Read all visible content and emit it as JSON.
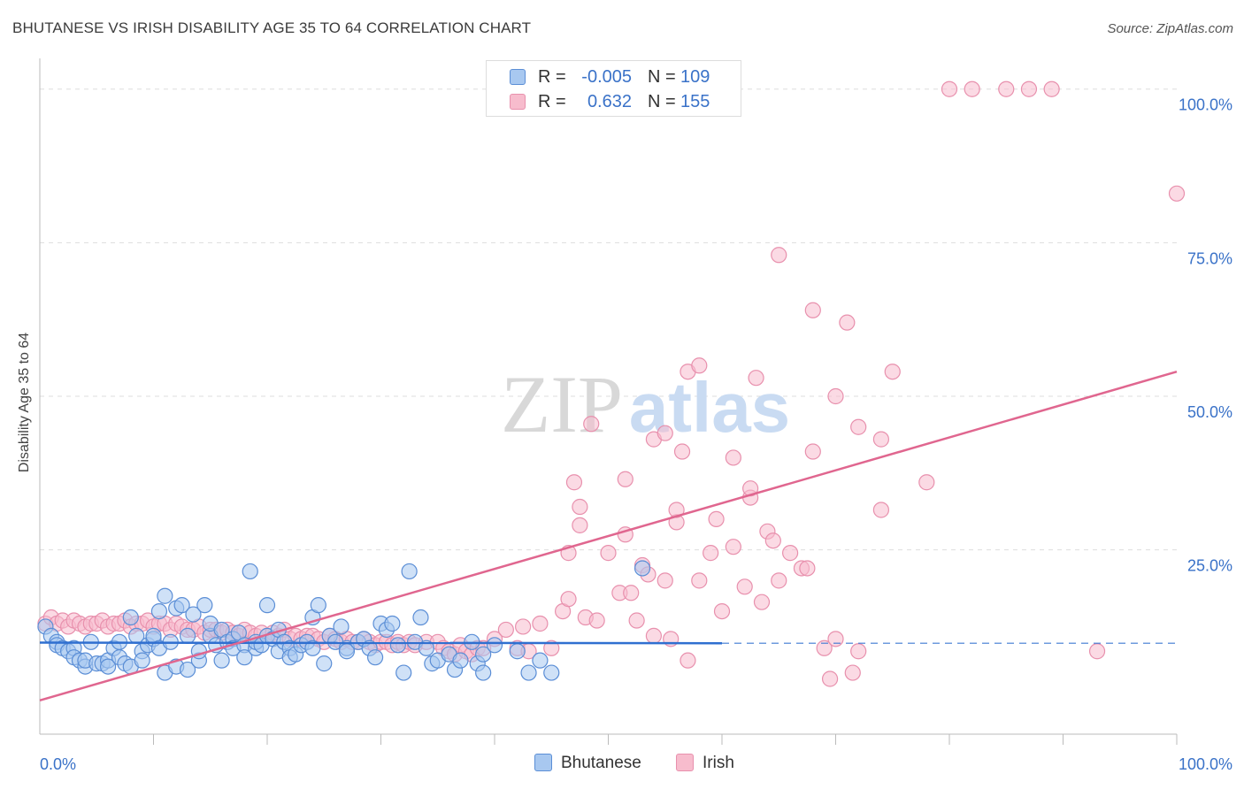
{
  "title": "BHUTANESE VS IRISH DISABILITY AGE 35 TO 64 CORRELATION CHART",
  "source": "Source: ZipAtlas.com",
  "watermark": {
    "zip": "ZIP",
    "atlas": "atlas"
  },
  "legend": {
    "rows": [
      {
        "r_label": "R =",
        "r_value": "-0.005",
        "n_label": "N =",
        "n_value": "109"
      },
      {
        "r_label": "R =",
        "r_value": "0.632",
        "n_label": "N =",
        "n_value": "155"
      }
    ]
  },
  "bottom_legend": [
    "Bhutanese",
    "Irish"
  ],
  "colors": {
    "bhutanese_fill": "#a8c8f0",
    "bhutanese_stroke": "#5b8ed6",
    "bhutanese_line": "#2f6fd0",
    "irish_fill": "#f7bccd",
    "irish_stroke": "#e890ad",
    "irish_line": "#e0668f",
    "tick_label": "#3a72c8",
    "grid": "#dddddd"
  },
  "chart_data": {
    "type": "scatter",
    "title": "BHUTANESE VS IRISH DISABILITY AGE 35 TO 64 CORRELATION CHART",
    "xlabel": "",
    "ylabel": "Disability Age 35 to 64",
    "xlim": [
      0,
      100
    ],
    "ylim": [
      -5,
      105
    ],
    "y_ticks": [
      25,
      50,
      75,
      100
    ],
    "y_tick_labels": [
      "25.0%",
      "50.0%",
      "75.0%",
      "100.0%"
    ],
    "x_tick_labels": [
      "0.0%",
      "100.0%"
    ],
    "series": [
      {
        "name": "Bhutanese",
        "r": -0.005,
        "n": 109,
        "trend": {
          "x": [
            0,
            60
          ],
          "y": [
            9.9,
            9.8
          ],
          "dashed_x": [
            60,
            100
          ],
          "dashed_y": [
            9.8,
            9.8
          ]
        },
        "points": [
          [
            0.5,
            12.5
          ],
          [
            1,
            11
          ],
          [
            1.5,
            10
          ],
          [
            1.5,
            9.5
          ],
          [
            2,
            9
          ],
          [
            2.5,
            8.5
          ],
          [
            3,
            9
          ],
          [
            3,
            7.5
          ],
          [
            3.5,
            7
          ],
          [
            4,
            6
          ],
          [
            4,
            7
          ],
          [
            4.5,
            10
          ],
          [
            5,
            6.5
          ],
          [
            5.5,
            6.5
          ],
          [
            6,
            7
          ],
          [
            6,
            6
          ],
          [
            6.5,
            9
          ],
          [
            7,
            10
          ],
          [
            7,
            7.5
          ],
          [
            7.5,
            6.5
          ],
          [
            8,
            14
          ],
          [
            8,
            6
          ],
          [
            8.5,
            11
          ],
          [
            9,
            8.5
          ],
          [
            9,
            7
          ],
          [
            9.5,
            9.5
          ],
          [
            10,
            10.5
          ],
          [
            10,
            11
          ],
          [
            10.5,
            9
          ],
          [
            10.5,
            15
          ],
          [
            11,
            17.5
          ],
          [
            11,
            5
          ],
          [
            11.5,
            10
          ],
          [
            12,
            15.5
          ],
          [
            12,
            6
          ],
          [
            12.5,
            16
          ],
          [
            13,
            11
          ],
          [
            13,
            5.5
          ],
          [
            13.5,
            14.5
          ],
          [
            14,
            7
          ],
          [
            14,
            8.5
          ],
          [
            14.5,
            16
          ],
          [
            15,
            11
          ],
          [
            15,
            13
          ],
          [
            15.5,
            9.5
          ],
          [
            16,
            12
          ],
          [
            16,
            7
          ],
          [
            16.5,
            10
          ],
          [
            17,
            10.5
          ],
          [
            17,
            9
          ],
          [
            17.5,
            11.5
          ],
          [
            18,
            9.5
          ],
          [
            18,
            7.5
          ],
          [
            18.5,
            21.5
          ],
          [
            19,
            9
          ],
          [
            19,
            10
          ],
          [
            19.5,
            9.5
          ],
          [
            20,
            11
          ],
          [
            20,
            16
          ],
          [
            20.5,
            10.5
          ],
          [
            21,
            12
          ],
          [
            21,
            8.5
          ],
          [
            21.5,
            10
          ],
          [
            22,
            9
          ],
          [
            22,
            7.5
          ],
          [
            22.5,
            8
          ],
          [
            23,
            9.5
          ],
          [
            23.5,
            10
          ],
          [
            24,
            9
          ],
          [
            24,
            14
          ],
          [
            24.5,
            16
          ],
          [
            25,
            6.5
          ],
          [
            25.5,
            11
          ],
          [
            26,
            10
          ],
          [
            26.5,
            12.5
          ],
          [
            27,
            9
          ],
          [
            27,
            8.5
          ],
          [
            28,
            10
          ],
          [
            28.5,
            10.5
          ],
          [
            29,
            9
          ],
          [
            29.5,
            7.5
          ],
          [
            30,
            13
          ],
          [
            30.5,
            12
          ],
          [
            31,
            13
          ],
          [
            31.5,
            9.5
          ],
          [
            32,
            5
          ],
          [
            32.5,
            21.5
          ],
          [
            33,
            10
          ],
          [
            33.5,
            14
          ],
          [
            34,
            9
          ],
          [
            34.5,
            6.5
          ],
          [
            35,
            7
          ],
          [
            36,
            8
          ],
          [
            36.5,
            5.5
          ],
          [
            37,
            7
          ],
          [
            38,
            10
          ],
          [
            38.5,
            6.5
          ],
          [
            39,
            8
          ],
          [
            39,
            5
          ],
          [
            40,
            9.5
          ],
          [
            42,
            8.5
          ],
          [
            43,
            5
          ],
          [
            44,
            7
          ],
          [
            45,
            5
          ],
          [
            53,
            22
          ]
        ]
      },
      {
        "name": "Irish",
        "r": 0.632,
        "n": 155,
        "trend": {
          "x": [
            0,
            100
          ],
          "y": [
            0.5,
            54
          ]
        },
        "points": [
          [
            0.5,
            13
          ],
          [
            1,
            14
          ],
          [
            1.5,
            13
          ],
          [
            2,
            13.5
          ],
          [
            2.5,
            12.5
          ],
          [
            3,
            13.5
          ],
          [
            3.5,
            13
          ],
          [
            4,
            12.5
          ],
          [
            4.5,
            13
          ],
          [
            5,
            13
          ],
          [
            5.5,
            13.5
          ],
          [
            6,
            12.5
          ],
          [
            6.5,
            13
          ],
          [
            7,
            13
          ],
          [
            7.5,
            13.5
          ],
          [
            8,
            12.5
          ],
          [
            8.5,
            13
          ],
          [
            9,
            13
          ],
          [
            9.5,
            13.5
          ],
          [
            10,
            12.5
          ],
          [
            10.5,
            13
          ],
          [
            11,
            13
          ],
          [
            11.5,
            12
          ],
          [
            12,
            13
          ],
          [
            12.5,
            12.5
          ],
          [
            13,
            12
          ],
          [
            13.5,
            12
          ],
          [
            14,
            12.5
          ],
          [
            14.5,
            11.5
          ],
          [
            15,
            12
          ],
          [
            15.5,
            12
          ],
          [
            16,
            11.5
          ],
          [
            16.5,
            12
          ],
          [
            17,
            11.5
          ],
          [
            17.5,
            11
          ],
          [
            18,
            12
          ],
          [
            18.5,
            11.5
          ],
          [
            19,
            11
          ],
          [
            19.5,
            11.5
          ],
          [
            20,
            11
          ],
          [
            20.5,
            11.5
          ],
          [
            21,
            11
          ],
          [
            21.5,
            12
          ],
          [
            22,
            10.5
          ],
          [
            22.5,
            11
          ],
          [
            23,
            10.5
          ],
          [
            23.5,
            11
          ],
          [
            24,
            11
          ],
          [
            24.5,
            10.5
          ],
          [
            25,
            10
          ],
          [
            25.5,
            11
          ],
          [
            26,
            10.5
          ],
          [
            26.5,
            10
          ],
          [
            27,
            10.5
          ],
          [
            27.5,
            10
          ],
          [
            28,
            10
          ],
          [
            28.5,
            10.5
          ],
          [
            29,
            10
          ],
          [
            29.5,
            9.5
          ],
          [
            30,
            10
          ],
          [
            30.5,
            10
          ],
          [
            31,
            9.5
          ],
          [
            31.5,
            10
          ],
          [
            32,
            9.5
          ],
          [
            32.5,
            10
          ],
          [
            33,
            9.5
          ],
          [
            34,
            10
          ],
          [
            35,
            10
          ],
          [
            35.5,
            9
          ],
          [
            36,
            8.5
          ],
          [
            36.5,
            8
          ],
          [
            37,
            9.5
          ],
          [
            37.5,
            8.5
          ],
          [
            38,
            8
          ],
          [
            38.5,
            9
          ],
          [
            39,
            9
          ],
          [
            40,
            10.5
          ],
          [
            41,
            12
          ],
          [
            42,
            9
          ],
          [
            42.5,
            12.5
          ],
          [
            43,
            8.5
          ],
          [
            44,
            13
          ],
          [
            45,
            9
          ],
          [
            46,
            15
          ],
          [
            46.5,
            24.5
          ],
          [
            46.5,
            17
          ],
          [
            47,
            36
          ],
          [
            47.5,
            29
          ],
          [
            47.5,
            32
          ],
          [
            48,
            14
          ],
          [
            48.5,
            45.5
          ],
          [
            49,
            13.5
          ],
          [
            50,
            24.5
          ],
          [
            51,
            18
          ],
          [
            51.5,
            36.5
          ],
          [
            51.5,
            27.5
          ],
          [
            52,
            18
          ],
          [
            52.5,
            13.5
          ],
          [
            53,
            22.5
          ],
          [
            53.5,
            21
          ],
          [
            54,
            11
          ],
          [
            54,
            43
          ],
          [
            55,
            20
          ],
          [
            55,
            44
          ],
          [
            55.5,
            10.5
          ],
          [
            56,
            29.5
          ],
          [
            56,
            31.5
          ],
          [
            56.5,
            41
          ],
          [
            57,
            54
          ],
          [
            57,
            7
          ],
          [
            58,
            20
          ],
          [
            58,
            55
          ],
          [
            59,
            24.5
          ],
          [
            59.5,
            30
          ],
          [
            60,
            15
          ],
          [
            61,
            25.5
          ],
          [
            61,
            40
          ],
          [
            62,
            19
          ],
          [
            62.5,
            33.5
          ],
          [
            62.5,
            35
          ],
          [
            63,
            53
          ],
          [
            63.5,
            16.5
          ],
          [
            64,
            28
          ],
          [
            64.5,
            26.5
          ],
          [
            65,
            73
          ],
          [
            65,
            20
          ],
          [
            66,
            24.5
          ],
          [
            67,
            22
          ],
          [
            67.5,
            22
          ],
          [
            68,
            41
          ],
          [
            68,
            64
          ],
          [
            69,
            9
          ],
          [
            69.5,
            4
          ],
          [
            70,
            10.5
          ],
          [
            70,
            50
          ],
          [
            71,
            62
          ],
          [
            71.5,
            5
          ],
          [
            72,
            45
          ],
          [
            72,
            8.5
          ],
          [
            74,
            43
          ],
          [
            74,
            31.5
          ],
          [
            75,
            54
          ],
          [
            78,
            36
          ],
          [
            80,
            100
          ],
          [
            82,
            100
          ],
          [
            85,
            100
          ],
          [
            87,
            100
          ],
          [
            89,
            100
          ],
          [
            93,
            8.5
          ],
          [
            100,
            83
          ]
        ]
      }
    ]
  }
}
